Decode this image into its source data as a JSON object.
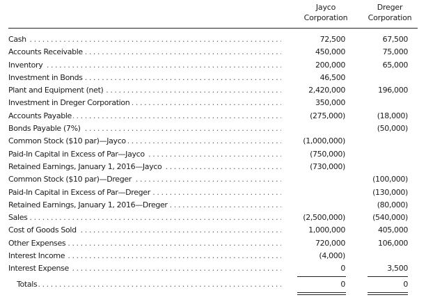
{
  "header": {
    "jayco": [
      "Jayco",
      "Corporation"
    ],
    "dreger": [
      "Dreger",
      "Corporation"
    ]
  },
  "rows": [
    {
      "label": "Cash",
      "jayco": "72,500",
      "dreger": "67,500"
    },
    {
      "label": "Accounts Receivable",
      "jayco": "450,000",
      "dreger": "75,000"
    },
    {
      "label": "Inventory",
      "jayco": "200,000",
      "dreger": "65,000"
    },
    {
      "label": "Investment in Bonds",
      "jayco": "46,500",
      "dreger": ""
    },
    {
      "label": "Plant and Equipment (net)",
      "jayco": "2,420,000",
      "dreger": "196,000"
    },
    {
      "label": "Investment in Dreger Corporation",
      "jayco": "350,000",
      "dreger": ""
    },
    {
      "label": "Accounts Payable",
      "jayco": "(275,000)",
      "dreger": "(18,000)"
    },
    {
      "label": "Bonds Payable (7%)",
      "jayco": "",
      "dreger": "(50,000)"
    },
    {
      "label": "Common Stock ($10 par)—Jayco",
      "jayco": "(1,000,000)",
      "dreger": ""
    },
    {
      "label": "Paid-In Capital in Excess of Par—Jayco",
      "jayco": "(750,000)",
      "dreger": ""
    },
    {
      "label": "Retained Earnings, January 1, 2016—Jayco",
      "jayco": "(730,000)",
      "dreger": ""
    },
    {
      "label": "Common Stock ($10 par)—Dreger",
      "jayco": "",
      "dreger": "(100,000)"
    },
    {
      "label": "Paid-In Capital in Excess of Par—Dreger",
      "jayco": "",
      "dreger": "(130,000)"
    },
    {
      "label": "Retained Earnings, January 1, 2016—Dreger",
      "jayco": "",
      "dreger": "(80,000)"
    },
    {
      "label": "Sales",
      "jayco": "(2,500,000)",
      "dreger": "(540,000)"
    },
    {
      "label": "Cost of Goods Sold",
      "jayco": "1,000,000",
      "dreger": "405,000"
    },
    {
      "label": "Other Expenses",
      "jayco": "720,000",
      "dreger": "106,000"
    },
    {
      "label": "Interest Income",
      "jayco": "(4,000)",
      "dreger": ""
    },
    {
      "label": "Interest Expense",
      "jayco": "0",
      "dreger": "3,500"
    }
  ],
  "totals": {
    "label": "Totals",
    "jayco": "0",
    "dreger": "0"
  },
  "dots": "..................................................................................................................."
}
